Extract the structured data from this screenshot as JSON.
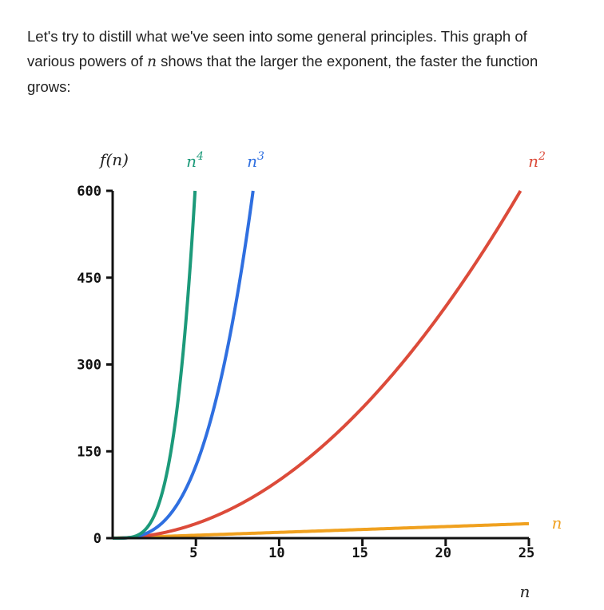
{
  "intro": {
    "before": "Let's try to distill what we've seen into some general principles. This graph of various powers of ",
    "var": "n",
    "after": " shows that the larger the exponent, the faster the function grows:"
  },
  "chart_data": {
    "type": "line",
    "title": "",
    "xlabel": "n",
    "ylabel": "f(n)",
    "xlim": [
      0,
      25
    ],
    "ylim": [
      0,
      600
    ],
    "x_ticks": [
      5,
      10,
      15,
      20,
      25
    ],
    "y_ticks": [
      0,
      150,
      300,
      450,
      600
    ],
    "grid": false,
    "series": [
      {
        "name": "n",
        "base": "n",
        "exponent": "",
        "power": 1,
        "color": "#f0a11f",
        "x": [
          0,
          5,
          10,
          15,
          20,
          25
        ],
        "y": [
          0,
          5,
          10,
          15,
          20,
          25
        ]
      },
      {
        "name": "n²",
        "base": "n",
        "exponent": "2",
        "power": 2,
        "color": "#dc4b3a",
        "x": [
          0,
          5,
          10,
          15,
          20,
          24.49
        ],
        "y": [
          0,
          25,
          100,
          225,
          400,
          600
        ]
      },
      {
        "name": "n³",
        "base": "n",
        "exponent": "3",
        "power": 3,
        "color": "#2f6fe0",
        "x": [
          0,
          2,
          4,
          6,
          8,
          8.43
        ],
        "y": [
          0,
          8,
          64,
          216,
          512,
          600
        ]
      },
      {
        "name": "n⁴",
        "base": "n",
        "exponent": "4",
        "power": 4,
        "color": "#1c9a7a",
        "x": [
          0,
          1,
          2,
          3,
          4,
          4.95
        ],
        "y": [
          0,
          1,
          16,
          81,
          256,
          600
        ]
      }
    ]
  }
}
